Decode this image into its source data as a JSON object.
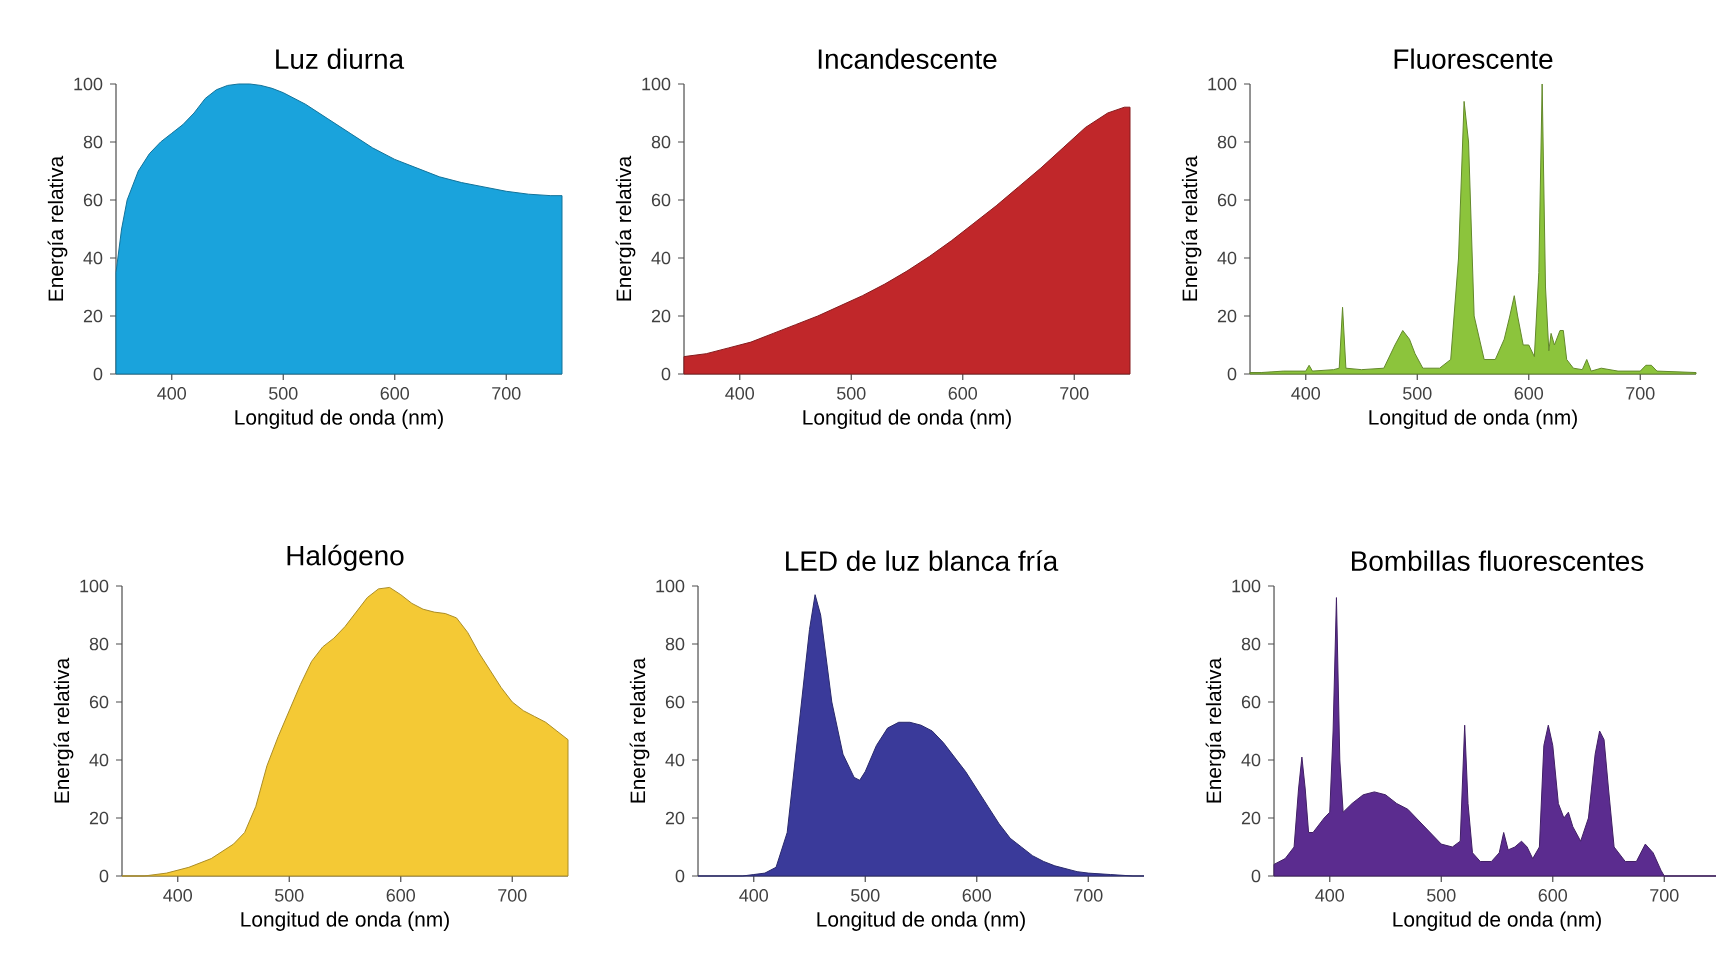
{
  "chart_data": [
    {
      "type": "area",
      "color": "#1aa3dc",
      "title": "Luz diurna",
      "xlabel": "Longitud de onda (nm)",
      "ylabel": "Energía relativa",
      "xlim": [
        350,
        750
      ],
      "xticks": [
        400,
        500,
        600,
        700
      ],
      "ylim": [
        0,
        100
      ],
      "yticks": [
        0,
        20,
        40,
        60,
        80,
        100
      ],
      "x": [
        350,
        355,
        360,
        370,
        380,
        390,
        400,
        410,
        420,
        430,
        440,
        450,
        460,
        470,
        480,
        490,
        500,
        520,
        540,
        560,
        580,
        600,
        620,
        640,
        660,
        680,
        700,
        720,
        740,
        750
      ],
      "values": [
        35,
        50,
        60,
        70,
        76,
        80,
        83,
        86,
        90,
        95,
        98,
        99.5,
        100,
        100,
        99.5,
        98.5,
        97,
        93,
        88,
        83,
        78,
        74,
        71,
        68,
        66,
        64.5,
        63,
        62,
        61.5,
        61.5
      ]
    },
    {
      "type": "area",
      "color": "#c0272a",
      "title": "Incandescente",
      "xlabel": "Longitud de onda (nm)",
      "ylabel": "Energía relativa",
      "xlim": [
        350,
        750
      ],
      "xticks": [
        400,
        500,
        600,
        700
      ],
      "ylim": [
        0,
        100
      ],
      "yticks": [
        0,
        20,
        40,
        60,
        80,
        100
      ],
      "x": [
        350,
        370,
        390,
        410,
        430,
        450,
        470,
        490,
        510,
        530,
        550,
        570,
        590,
        610,
        630,
        650,
        670,
        690,
        710,
        730,
        745,
        750
      ],
      "values": [
        6,
        7,
        9,
        11,
        14,
        17,
        20,
        23.5,
        27,
        31,
        35.5,
        40.5,
        46,
        52,
        58,
        64.5,
        71,
        78,
        85,
        90,
        92,
        92
      ]
    },
    {
      "type": "area",
      "color": "#8cc43c",
      "title": "Fluorescente",
      "xlabel": "Longitud de onda (nm)",
      "ylabel": "Energía relativa",
      "xlim": [
        350,
        750
      ],
      "xticks": [
        400,
        500,
        600,
        700
      ],
      "ylim": [
        0,
        100
      ],
      "yticks": [
        0,
        20,
        40,
        60,
        80,
        100
      ],
      "x": [
        350,
        360,
        380,
        400,
        403,
        406,
        425,
        430,
        433,
        436,
        450,
        470,
        480,
        487,
        493,
        498,
        505,
        520,
        530,
        537,
        542,
        546,
        551,
        560,
        570,
        578,
        583,
        587,
        590,
        595,
        600,
        605,
        609,
        612,
        615,
        618,
        620,
        623,
        628,
        631,
        634,
        640,
        648,
        652,
        656,
        665,
        680,
        700,
        705,
        710,
        715,
        750
      ],
      "values": [
        0.5,
        0.5,
        1,
        1,
        3,
        1,
        1.5,
        2,
        23,
        2,
        1.5,
        2,
        10,
        15,
        12,
        7,
        2,
        2,
        5,
        40,
        94,
        80,
        20,
        5,
        5,
        12,
        20,
        27,
        20,
        10,
        10,
        6,
        35,
        100,
        30,
        8,
        14,
        10,
        15,
        15,
        5,
        2,
        1.5,
        5,
        1,
        2,
        1,
        1,
        3,
        3,
        1,
        0.5
      ]
    },
    {
      "type": "area",
      "color": "#f4c935",
      "title": "Halógeno",
      "xlabel": "Longitud de onda (nm)",
      "ylabel": "Energía relativa",
      "xlim": [
        350,
        750
      ],
      "xticks": [
        400,
        500,
        600,
        700
      ],
      "ylim": [
        0,
        100
      ],
      "yticks": [
        0,
        20,
        40,
        60,
        80,
        100
      ],
      "x": [
        350,
        370,
        390,
        410,
        430,
        450,
        460,
        470,
        480,
        490,
        500,
        510,
        520,
        530,
        540,
        550,
        560,
        570,
        580,
        590,
        600,
        610,
        620,
        630,
        640,
        650,
        660,
        670,
        680,
        690,
        700,
        710,
        720,
        730,
        740,
        750
      ],
      "values": [
        0,
        0,
        1,
        3,
        6,
        11,
        15,
        24,
        38,
        48,
        57,
        66,
        74,
        79,
        82,
        86,
        91,
        96,
        99,
        99.5,
        97,
        94,
        92,
        91,
        90.5,
        89,
        84,
        77,
        71,
        65,
        60,
        57,
        55,
        53,
        50,
        47
      ]
    },
    {
      "type": "area",
      "color": "#3a3a9a",
      "title": "LED de luz blanca fría",
      "xlabel": "Longitud de onda (nm)",
      "ylabel": "Energía relativa",
      "xlim": [
        350,
        750
      ],
      "xticks": [
        400,
        500,
        600,
        700
      ],
      "ylim": [
        0,
        100
      ],
      "yticks": [
        0,
        20,
        40,
        60,
        80,
        100
      ],
      "x": [
        350,
        390,
        400,
        410,
        420,
        430,
        440,
        450,
        455,
        460,
        470,
        480,
        490,
        495,
        500,
        510,
        520,
        530,
        540,
        550,
        560,
        570,
        580,
        590,
        600,
        610,
        620,
        630,
        640,
        650,
        660,
        670,
        680,
        690,
        700,
        720,
        740,
        750
      ],
      "values": [
        0,
        0,
        0.5,
        1,
        3,
        15,
        50,
        85,
        97,
        90,
        60,
        42,
        34,
        33,
        36,
        45,
        51,
        53,
        53,
        52,
        50,
        46,
        41,
        36,
        30,
        24,
        18,
        13,
        10,
        7,
        5,
        3.5,
        2.5,
        1.5,
        1,
        0.5,
        0,
        0
      ]
    },
    {
      "type": "area",
      "color": "#5b2c8f",
      "title": "Bombillas fluorescentes",
      "xlabel": "Longitud de onda (nm)",
      "ylabel": "Energía relativa",
      "xlim": [
        350,
        750
      ],
      "xticks": [
        400,
        500,
        600,
        700
      ],
      "ylim": [
        0,
        100
      ],
      "yticks": [
        0,
        20,
        40,
        60,
        80,
        100
      ],
      "x": [
        350,
        360,
        368,
        372,
        375,
        378,
        381,
        385,
        395,
        400,
        403,
        406,
        409,
        412,
        420,
        430,
        440,
        450,
        460,
        470,
        480,
        490,
        500,
        510,
        517,
        521,
        524,
        528,
        535,
        545,
        552,
        556,
        560,
        566,
        572,
        577,
        582,
        588,
        592,
        596,
        600,
        605,
        610,
        614,
        618,
        625,
        632,
        638,
        642,
        646,
        650,
        655,
        665,
        675,
        683,
        690,
        697,
        700,
        710,
        750
      ],
      "values": [
        4,
        6,
        10,
        30,
        41,
        30,
        15,
        15,
        20,
        22,
        50,
        96,
        40,
        22,
        25,
        28,
        29,
        28,
        25,
        23,
        19,
        15,
        11,
        10,
        12,
        52,
        25,
        8,
        5,
        5,
        8,
        15,
        9,
        10,
        12,
        10,
        6,
        10,
        45,
        52,
        45,
        25,
        20,
        22,
        17,
        12,
        20,
        42,
        50,
        47,
        30,
        10,
        5,
        5,
        11,
        8,
        2,
        0,
        0,
        0
      ]
    }
  ]
}
